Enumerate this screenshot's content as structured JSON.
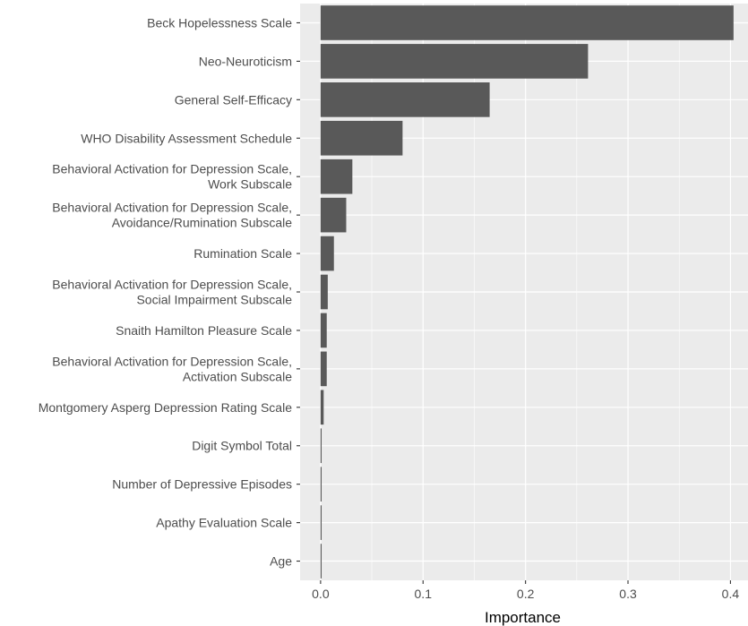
{
  "chart_data": {
    "type": "bar",
    "orientation": "horizontal",
    "categories": [
      "Beck Hopelessness Scale",
      "Neo-Neuroticism",
      "General Self-Efficacy",
      "WHO Disability Assessment Schedule",
      "Behavioral Activation for Depression Scale,\nWork Subscale",
      "Behavioral Activation for Depression Scale,\nAvoidance/Rumination Subscale",
      "Rumination Scale",
      "Behavioral Activation for Depression Scale,\nSocial Impairment Subscale",
      "Snaith Hamilton Pleasure Scale",
      "Behavioral Activation for Depression Scale,\nActivation Subscale",
      "Montgomery Asperg Depression Rating Scale",
      "Digit Symbol Total",
      "Number of Depressive Episodes",
      "Apathy Evaluation Scale",
      "Age"
    ],
    "values": [
      0.403,
      0.261,
      0.165,
      0.08,
      0.031,
      0.025,
      0.013,
      0.007,
      0.006,
      0.006,
      0.003,
      0.001,
      0.001,
      0.001,
      0.001
    ],
    "title": "",
    "xlabel": "Importance",
    "ylabel": "",
    "xlim": [
      -0.02,
      0.418
    ],
    "xticks": [
      0.0,
      0.1,
      0.2,
      0.3,
      0.4
    ],
    "xtick_labels": [
      "0.0",
      "0.1",
      "0.2",
      "0.3",
      "0.4"
    ],
    "grid": true,
    "legend": "none",
    "colors": {
      "panel_background": "#ebebeb",
      "grid_major": "#ffffff",
      "bar_fill": "#595959",
      "tick_color": "#333333",
      "label_text": "#4d4d4d",
      "axis_title": "#000000"
    }
  }
}
